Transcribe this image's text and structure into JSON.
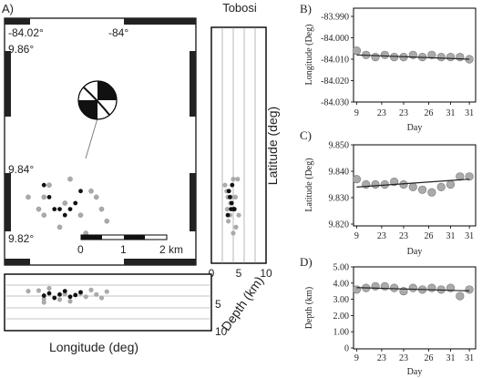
{
  "main_map": {
    "panel_label": "A)",
    "lon_ticks": [
      "-84.02°",
      "-84°"
    ],
    "lat_ticks": [
      "9.86°",
      "9.84°",
      "9.82°"
    ],
    "scale_bar": {
      "labels": [
        "0",
        "1",
        "2 km"
      ]
    },
    "events_gray": [
      [
        -84.022,
        9.839
      ],
      [
        -84.016,
        9.836
      ],
      [
        -84.013,
        9.833
      ],
      [
        -84.012,
        9.838
      ],
      [
        -84.01,
        9.831
      ],
      [
        -84.009,
        9.835
      ],
      [
        -84.005,
        9.83
      ],
      [
        -84.004,
        9.837
      ],
      [
        -84.003,
        9.836
      ],
      [
        -84.002,
        9.834
      ],
      [
        -84.001,
        9.832
      ],
      [
        -84.008,
        9.839
      ],
      [
        -84.014,
        9.834
      ],
      [
        -84.006,
        9.833
      ],
      [
        -84.013,
        9.836
      ]
    ],
    "events_black": [
      [
        -84.013,
        9.838
      ],
      [
        -84.012,
        9.836
      ],
      [
        -84.011,
        9.834
      ],
      [
        -84.01,
        9.834
      ],
      [
        -84.009,
        9.833
      ],
      [
        -84.008,
        9.834
      ],
      [
        -84.006,
        9.837
      ],
      [
        -84.007,
        9.835
      ]
    ]
  },
  "side_section": {
    "station": "Tobosi",
    "ylabel": "Latitude (deg)",
    "xlabel": "Depth (km)",
    "x_ticks": [
      "0",
      "5",
      "10"
    ]
  },
  "bottom_section": {
    "xlabel": "Longitude (deg)",
    "y_ticks": [
      "5",
      "10"
    ]
  },
  "chart_data": [
    {
      "type": "scatter",
      "panel_label": "B)",
      "xlabel": "Day",
      "ylabel": "Longitude (Deg)",
      "x_ticks": [
        "9",
        "23",
        "23",
        "26",
        "31",
        "31"
      ],
      "y_ticks": [
        "-83.990",
        "-84.000",
        "-84.010",
        "-84.020",
        "-84.030"
      ],
      "ylim": [
        -84.03,
        -83.99
      ],
      "points": [
        [
          9,
          -84.006
        ],
        [
          12,
          -84.008
        ],
        [
          15,
          -84.009
        ],
        [
          18,
          -84.008
        ],
        [
          21,
          -84.009
        ],
        [
          24,
          -84.009
        ],
        [
          27,
          -84.008
        ],
        [
          30,
          -84.009
        ],
        [
          33,
          -84.008
        ],
        [
          36,
          -84.009
        ],
        [
          39,
          -84.009
        ],
        [
          42,
          -84.009
        ],
        [
          45,
          -84.01
        ]
      ],
      "trend": [
        [
          9,
          -84.008
        ],
        [
          45,
          -84.01
        ]
      ]
    },
    {
      "type": "scatter",
      "panel_label": "C)",
      "xlabel": "Day",
      "ylabel": "Latitude (Deg)",
      "x_ticks": [
        "9",
        "23",
        "23",
        "26",
        "31",
        "31"
      ],
      "y_ticks": [
        "9.850",
        "9.840",
        "9.830",
        "9.820"
      ],
      "ylim": [
        9.82,
        9.85
      ],
      "points": [
        [
          9,
          9.837
        ],
        [
          12,
          9.835
        ],
        [
          15,
          9.835
        ],
        [
          18,
          9.835
        ],
        [
          21,
          9.836
        ],
        [
          24,
          9.835
        ],
        [
          27,
          9.834
        ],
        [
          30,
          9.833
        ],
        [
          33,
          9.832
        ],
        [
          36,
          9.834
        ],
        [
          39,
          9.835
        ],
        [
          42,
          9.838
        ],
        [
          45,
          9.838
        ]
      ],
      "trend": [
        [
          9,
          9.834
        ],
        [
          45,
          9.837
        ]
      ]
    },
    {
      "type": "scatter",
      "panel_label": "D)",
      "xlabel": "Day",
      "ylabel": "Depth (km)",
      "x_ticks": [
        "9",
        "23",
        "23",
        "26",
        "31",
        "31"
      ],
      "y_ticks": [
        "5.00",
        "4.00",
        "3.00",
        "2.00",
        "1.00",
        "0"
      ],
      "ylim": [
        0,
        5
      ],
      "points": [
        [
          9,
          3.6
        ],
        [
          12,
          3.7
        ],
        [
          15,
          3.8
        ],
        [
          18,
          3.8
        ],
        [
          21,
          3.7
        ],
        [
          24,
          3.5
        ],
        [
          27,
          3.7
        ],
        [
          30,
          3.6
        ],
        [
          33,
          3.7
        ],
        [
          36,
          3.6
        ],
        [
          39,
          3.7
        ],
        [
          42,
          3.2
        ],
        [
          45,
          3.6
        ]
      ],
      "trend": [
        [
          9,
          3.72
        ],
        [
          45,
          3.52
        ]
      ]
    }
  ]
}
